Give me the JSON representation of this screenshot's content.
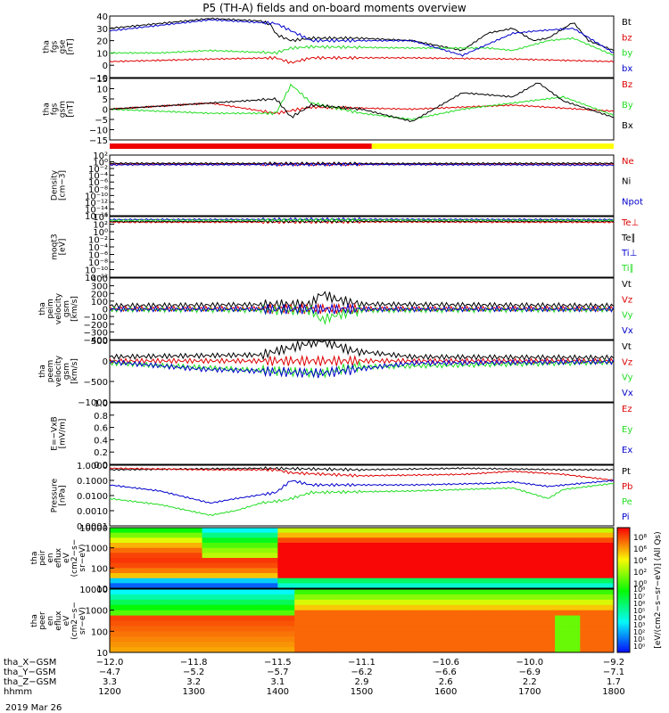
{
  "title": "P5 (TH-A) fields and on-board moments overview",
  "date_label": "2019 Mar 26",
  "colors": {
    "black": "#000000",
    "red": "#dd0000",
    "green": "#22dd22",
    "blue": "#0000cc",
    "yellow": "#ffff00"
  },
  "chart_data": [
    {
      "type": "line",
      "ylabel": [
        "tha",
        "fgs",
        "gse",
        "[nT]"
      ],
      "ylim": [
        -10,
        40
      ],
      "yticks": [
        "40",
        "30",
        "20",
        "10",
        "0",
        "−10"
      ],
      "series": [
        {
          "name": "Bt",
          "color": "#000000",
          "x": [
            0,
            0.1,
            0.2,
            0.3,
            0.32,
            0.33,
            0.36,
            0.4,
            0.5,
            0.6,
            0.65,
            0.7,
            0.75,
            0.8,
            0.84,
            0.87,
            0.92,
            0.95,
            1
          ],
          "values": [
            30,
            34,
            38,
            36,
            33,
            25,
            20,
            22,
            22,
            20,
            16,
            12,
            26,
            30,
            20,
            22,
            35,
            20,
            12
          ]
        },
        {
          "name": "bz",
          "color": "#dd0000",
          "x": [
            0,
            0.2,
            0.33,
            0.36,
            0.4,
            0.6,
            0.8,
            1
          ],
          "values": [
            3,
            5,
            6,
            2,
            6,
            6,
            5,
            3
          ]
        },
        {
          "name": "by",
          "color": "#22dd22",
          "x": [
            0,
            0.1,
            0.2,
            0.33,
            0.36,
            0.4,
            0.6,
            0.75,
            0.8,
            0.87,
            0.92,
            1
          ],
          "values": [
            10,
            10,
            12,
            10,
            14,
            15,
            14,
            14,
            12,
            20,
            22,
            8
          ]
        },
        {
          "name": "bx",
          "color": "#0000cc",
          "x": [
            0,
            0.2,
            0.33,
            0.4,
            0.6,
            0.7,
            0.8,
            0.85,
            0.92,
            1
          ],
          "values": [
            28,
            37,
            34,
            20,
            20,
            8,
            26,
            28,
            30,
            10
          ]
        }
      ]
    },
    {
      "type": "line",
      "ylabel": [
        "tha",
        "fgs",
        "gsm",
        "[nT]"
      ],
      "ylim": [
        -15,
        15
      ],
      "yticks": [
        "15",
        "10",
        "5",
        "0",
        "−5",
        "−10",
        "−15"
      ],
      "series": [
        {
          "name": "Bz",
          "color": "#dd0000",
          "x": [
            0,
            0.2,
            0.33,
            0.4,
            0.6,
            0.8,
            1
          ],
          "values": [
            0,
            3,
            -2,
            1,
            0,
            2,
            -1
          ]
        },
        {
          "name": "By",
          "color": "#22dd22",
          "x": [
            0,
            0.2,
            0.33,
            0.36,
            0.4,
            0.5,
            0.6,
            0.7,
            0.8,
            0.9,
            1
          ],
          "values": [
            0,
            -2,
            -2,
            12,
            3,
            -2,
            -5,
            0,
            3,
            6,
            -3
          ]
        },
        {
          "name": "Bx",
          "color": "#000000",
          "x": [
            0,
            0.2,
            0.33,
            0.36,
            0.4,
            0.5,
            0.6,
            0.7,
            0.8,
            0.85,
            0.9,
            1
          ],
          "values": [
            0,
            3,
            5,
            -4,
            2,
            0,
            -6,
            8,
            6,
            13,
            4,
            -4
          ]
        }
      ]
    },
    {
      "type": "line",
      "ylabel": [
        "Density",
        "[cm−3]"
      ],
      "scale": "log",
      "ylim": [
        -16,
        4
      ],
      "yticks": [
        "10²",
        "10⁰",
        "10⁻²",
        "10⁻⁴",
        "10⁻⁶",
        "10⁻⁸",
        "10⁻¹⁰",
        "10⁻¹²",
        "10⁻¹⁴",
        "10⁻¹⁶"
      ],
      "series": [
        {
          "name": "Ne",
          "color": "#dd0000",
          "x": [
            0,
            0.5,
            1
          ],
          "values": [
            1,
            1,
            1
          ]
        },
        {
          "name": "Ni",
          "color": "#000000",
          "x": [
            0,
            0.5,
            1
          ],
          "values": [
            1.3,
            1.2,
            1.3
          ]
        },
        {
          "name": "Npot",
          "color": "#0000cc",
          "x": [
            0,
            0.5,
            1
          ],
          "values": [
            0.8,
            0.9,
            0.7
          ]
        }
      ]
    },
    {
      "type": "line",
      "ylabel": [
        "moqt3",
        "[eV]"
      ],
      "scale": "log",
      "ylim": [
        -12,
        4
      ],
      "yticks": [
        "10⁴",
        "10²",
        "10⁰",
        "10⁻²",
        "10⁻⁴",
        "10⁻⁶",
        "10⁻⁸",
        "10⁻¹⁰",
        "10⁻¹²"
      ],
      "series": [
        {
          "name": "Te⊥",
          "color": "#dd0000",
          "x": [
            0,
            0.5,
            1
          ],
          "values": [
            2.5,
            2.6,
            2.5
          ]
        },
        {
          "name": "Te∥",
          "color": "#000000",
          "x": [
            0,
            0.5,
            1
          ],
          "values": [
            2.7,
            2.8,
            2.8
          ]
        },
        {
          "name": "Ti⊥",
          "color": "#0000cc",
          "x": [
            0,
            0.5,
            1
          ],
          "values": [
            3.2,
            3.3,
            3.2
          ]
        },
        {
          "name": "Ti∥",
          "color": "#22dd22",
          "x": [
            0,
            0.5,
            1
          ],
          "values": [
            3,
            3.1,
            3
          ]
        }
      ]
    },
    {
      "type": "line",
      "ylabel": [
        "tha",
        "peim",
        "velocity",
        "gsm",
        "[km/s]"
      ],
      "ylim": [
        -400,
        400
      ],
      "yticks": [
        "400",
        "300",
        "200",
        "100",
        "0",
        "−100",
        "−200",
        "−300",
        "−400"
      ],
      "series": [
        {
          "name": "Vt",
          "color": "#000000",
          "x": [
            0,
            0.2,
            0.4,
            0.42,
            0.45,
            0.5,
            1
          ],
          "values": [
            40,
            50,
            60,
            200,
            120,
            60,
            40
          ]
        },
        {
          "name": "Vz",
          "color": "#dd0000",
          "x": [
            0,
            0.5,
            1
          ],
          "values": [
            0,
            0,
            0
          ]
        },
        {
          "name": "Vy",
          "color": "#22dd22",
          "x": [
            0,
            0.4,
            0.42,
            0.45,
            0.5,
            1
          ],
          "values": [
            -10,
            -20,
            -150,
            -80,
            -20,
            -10
          ]
        },
        {
          "name": "Vx",
          "color": "#0000cc",
          "x": [
            0,
            0.5,
            1
          ],
          "values": [
            -5,
            -5,
            -5
          ]
        }
      ]
    },
    {
      "type": "line",
      "ylabel": [
        "tha",
        "peem",
        "velocity",
        "gsm",
        "[km/s]"
      ],
      "ylim": [
        -1000,
        500
      ],
      "yticks": [
        "500",
        "0",
        "−500",
        "−1000"
      ],
      "series": [
        {
          "name": "Vt",
          "color": "#000000",
          "x": [
            0,
            0.3,
            0.42,
            0.48,
            0.6,
            1
          ],
          "values": [
            100,
            150,
            500,
            250,
            100,
            80
          ]
        },
        {
          "name": "Vz",
          "color": "#dd0000",
          "x": [
            0,
            0.5,
            1
          ],
          "values": [
            0,
            0,
            0
          ]
        },
        {
          "name": "Vy",
          "color": "#22dd22",
          "x": [
            0,
            0.42,
            0.48,
            1
          ],
          "values": [
            -50,
            -300,
            -150,
            -30
          ]
        },
        {
          "name": "Vx",
          "color": "#0000cc",
          "x": [
            0,
            0.18,
            0.42,
            0.6,
            1
          ],
          "values": [
            -20,
            -200,
            -300,
            -50,
            -20
          ]
        }
      ]
    },
    {
      "type": "line",
      "ylabel": [
        "E=−VxB",
        "[mV/m]"
      ],
      "ylim": [
        0,
        1
      ],
      "yticks": [
        "1.0",
        "0.8",
        "0.6",
        "0.4",
        "0.2",
        "0.0"
      ],
      "series": [
        {
          "name": "Ez",
          "color": "#dd0000",
          "x": [],
          "values": []
        },
        {
          "name": "Ey",
          "color": "#22dd22",
          "x": [],
          "values": []
        },
        {
          "name": "Ex",
          "color": "#0000cc",
          "x": [],
          "values": []
        }
      ]
    },
    {
      "type": "line",
      "ylabel": [
        "Pressure",
        "[nPa]"
      ],
      "scale": "log",
      "ylim": [
        -4,
        0
      ],
      "yticks": [
        "1.0000",
        "0.1000",
        "0.0100",
        "0.0010",
        "0.0001"
      ],
      "series": [
        {
          "name": "Pt",
          "color": "#000000",
          "x": [
            0,
            0.3,
            0.5,
            0.7,
            0.9,
            1
          ],
          "values": [
            -0.3,
            -0.2,
            -0.3,
            -0.2,
            -0.3,
            -0.3
          ]
        },
        {
          "name": "Pb",
          "color": "#dd0000",
          "x": [
            0,
            0.2,
            0.33,
            0.36,
            0.5,
            0.7,
            0.8,
            0.9,
            1
          ],
          "values": [
            -0.2,
            -0.3,
            -0.3,
            -0.5,
            -0.7,
            -0.6,
            -0.4,
            -0.6,
            -1
          ]
        },
        {
          "name": "Pe",
          "color": "#22dd22",
          "x": [
            0,
            0.1,
            0.2,
            0.25,
            0.3,
            0.35,
            0.4,
            0.6,
            0.8,
            0.87,
            0.9,
            1
          ],
          "values": [
            -2.2,
            -2.6,
            -3.3,
            -3,
            -2.5,
            -2.3,
            -1.8,
            -1.7,
            -1.5,
            -2.2,
            -1.6,
            -1.2
          ]
        },
        {
          "name": "Pi",
          "color": "#0000cc",
          "x": [
            0,
            0.1,
            0.2,
            0.25,
            0.33,
            0.36,
            0.4,
            0.6,
            0.75,
            0.8,
            0.87,
            1
          ],
          "values": [
            -1.3,
            -1.7,
            -2.5,
            -2.2,
            -1.8,
            -1,
            -1.3,
            -1.3,
            -1.2,
            -1.1,
            -1.4,
            -1
          ]
        }
      ]
    },
    {
      "type": "heatmap",
      "ylabel": [
        "tha",
        "peir",
        "en",
        "eflux",
        "eV",
        "(cm2−s−",
        "sr−eV)"
      ],
      "scale": "log",
      "yticks": [
        "10000",
        "1000",
        "100",
        "10"
      ]
    },
    {
      "type": "heatmap",
      "ylabel": [
        "tha",
        "peer",
        "en",
        "eflux",
        "eV",
        "(cm2−s−",
        "sr−eV)"
      ],
      "scale": "log",
      "yticks": [
        "10000",
        "1000",
        "100",
        "10"
      ]
    }
  ],
  "colorbar": {
    "label": "[eV/(cm2−s−sr−eV)] (All Qs)",
    "ticks_top": [
      "10⁸",
      "10⁶",
      "10⁴",
      "10²",
      "10⁰"
    ],
    "ticks_bottom": [
      "10⁸",
      "10⁷",
      "10⁶",
      "10⁵",
      "10⁴",
      "10³",
      "10²",
      "10¹",
      "10⁰"
    ]
  },
  "xaxis": {
    "rows": [
      {
        "label": "tha_X−GSM",
        "values": [
          "−12.0",
          "−11.8",
          "−11.5",
          "−11.1",
          "−10.6",
          "−10.0",
          "−9.2"
        ]
      },
      {
        "label": "tha_Y−GSM",
        "values": [
          "−4.7",
          "−5.2",
          "−5.7",
          "−6.2",
          "−6.6",
          "−6.9",
          "−7.1"
        ]
      },
      {
        "label": "tha_Z−GSM",
        "values": [
          "3.3",
          "3.2",
          "3.1",
          "2.9",
          "2.6",
          "2.2",
          "1.7"
        ]
      },
      {
        "label": "hhmm",
        "values": [
          "1200",
          "1300",
          "1400",
          "1500",
          "1600",
          "1700",
          "1800"
        ]
      }
    ]
  },
  "mode_bar": {
    "split": 0.52,
    "left_color": "#ee0000",
    "right_color": "#ffff00"
  }
}
